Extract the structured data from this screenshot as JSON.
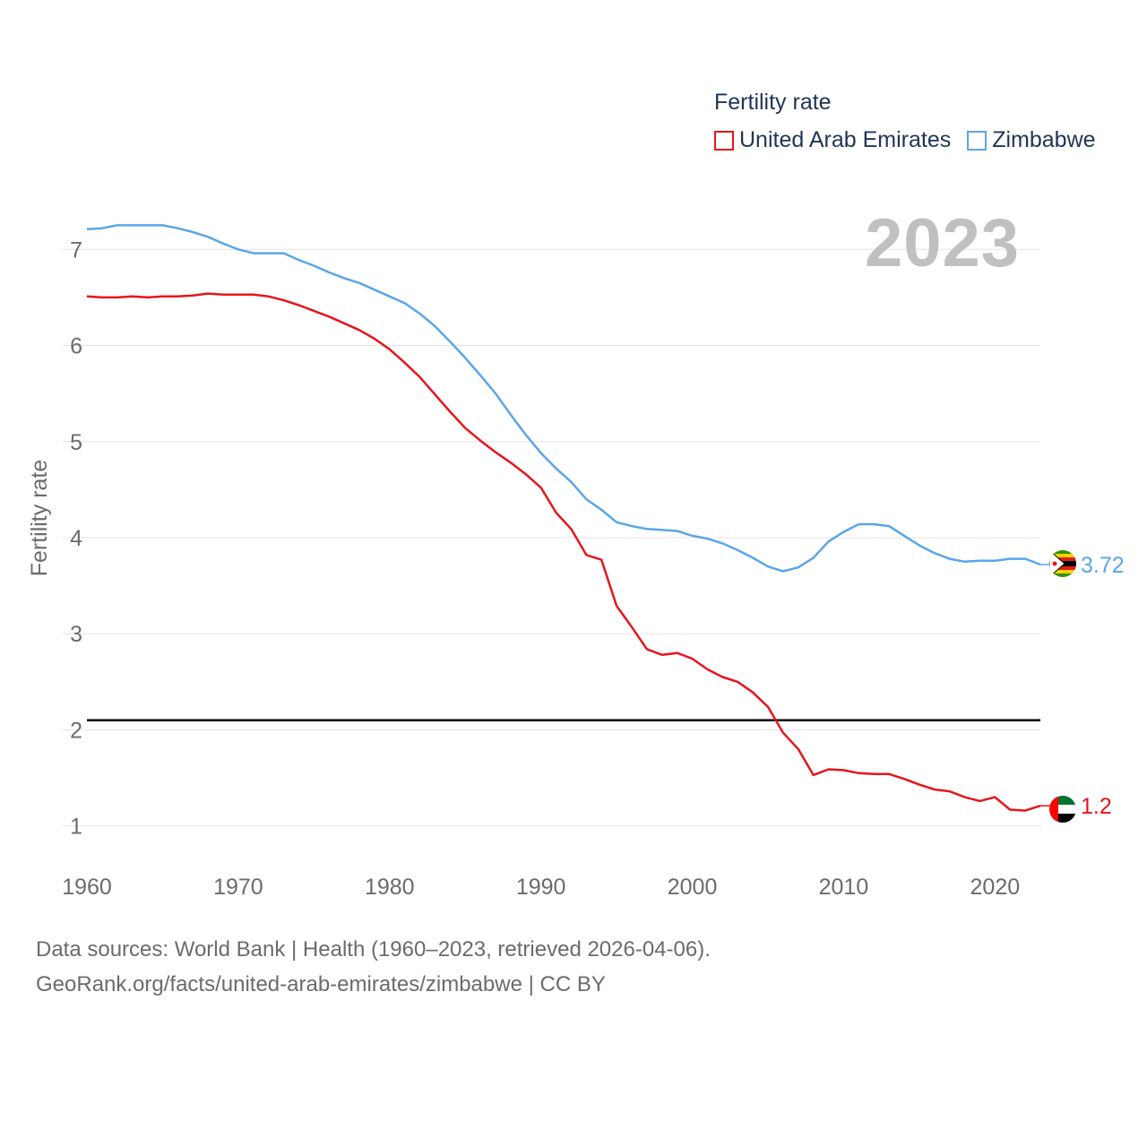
{
  "chart_data": {
    "type": "line",
    "title": "2023",
    "legend_title": "Fertility rate",
    "ylabel": "Fertility rate",
    "xlabel": "",
    "xlim": [
      1960,
      2023
    ],
    "ylim": [
      0.55,
      7.45
    ],
    "x_ticks": [
      1960,
      1970,
      1980,
      1990,
      2000,
      2010,
      2020
    ],
    "y_ticks": [
      1,
      2,
      3,
      4,
      5,
      6,
      7
    ],
    "reference_line": 2.1,
    "x": [
      1960,
      1961,
      1962,
      1963,
      1964,
      1965,
      1966,
      1967,
      1968,
      1969,
      1970,
      1971,
      1972,
      1973,
      1974,
      1975,
      1976,
      1977,
      1978,
      1979,
      1980,
      1981,
      1982,
      1983,
      1984,
      1985,
      1986,
      1987,
      1988,
      1989,
      1990,
      1991,
      1992,
      1993,
      1994,
      1995,
      1996,
      1997,
      1998,
      1999,
      2000,
      2001,
      2002,
      2003,
      2004,
      2005,
      2006,
      2007,
      2008,
      2009,
      2010,
      2011,
      2012,
      2013,
      2014,
      2015,
      2016,
      2017,
      2018,
      2019,
      2020,
      2021,
      2022,
      2023
    ],
    "series": [
      {
        "name": "United Arab Emirates",
        "color": "#e8141c",
        "end_label": "1.2",
        "values": [
          6.51,
          6.5,
          6.5,
          6.51,
          6.5,
          6.51,
          6.51,
          6.52,
          6.54,
          6.53,
          6.53,
          6.53,
          6.51,
          6.47,
          6.42,
          6.36,
          6.3,
          6.23,
          6.16,
          6.07,
          5.96,
          5.82,
          5.67,
          5.49,
          5.31,
          5.14,
          5.01,
          4.89,
          4.78,
          4.66,
          4.52,
          4.26,
          4.09,
          3.82,
          3.77,
          3.29,
          3.07,
          2.84,
          2.78,
          2.8,
          2.74,
          2.63,
          2.55,
          2.5,
          2.39,
          2.24,
          1.97,
          1.8,
          1.53,
          1.59,
          1.58,
          1.55,
          1.54,
          1.54,
          1.49,
          1.43,
          1.38,
          1.36,
          1.3,
          1.26,
          1.3,
          1.17,
          1.16,
          1.21
        ]
      },
      {
        "name": "Zimbabwe",
        "color": "#5aa6e8",
        "end_label": "3.72",
        "values": [
          7.21,
          7.22,
          7.25,
          7.25,
          7.25,
          7.25,
          7.22,
          7.18,
          7.13,
          7.06,
          7.0,
          6.96,
          6.96,
          6.96,
          6.89,
          6.83,
          6.76,
          6.7,
          6.65,
          6.58,
          6.51,
          6.44,
          6.33,
          6.2,
          6.04,
          5.87,
          5.69,
          5.5,
          5.28,
          5.07,
          4.88,
          4.72,
          4.58,
          4.4,
          4.29,
          4.16,
          4.12,
          4.09,
          4.08,
          4.07,
          4.02,
          3.99,
          3.94,
          3.87,
          3.79,
          3.7,
          3.65,
          3.69,
          3.79,
          3.96,
          4.06,
          4.14,
          4.14,
          4.12,
          4.02,
          3.92,
          3.84,
          3.78,
          3.75,
          3.76,
          3.76,
          3.78,
          3.78,
          3.72
        ]
      }
    ]
  },
  "footer": {
    "line1": "Data sources: World Bank | Health (1960–2023, retrieved 2026-04-06).",
    "line2": "GeoRank.org/facts/united-arab-emirates/zimbabwe | CC BY"
  }
}
